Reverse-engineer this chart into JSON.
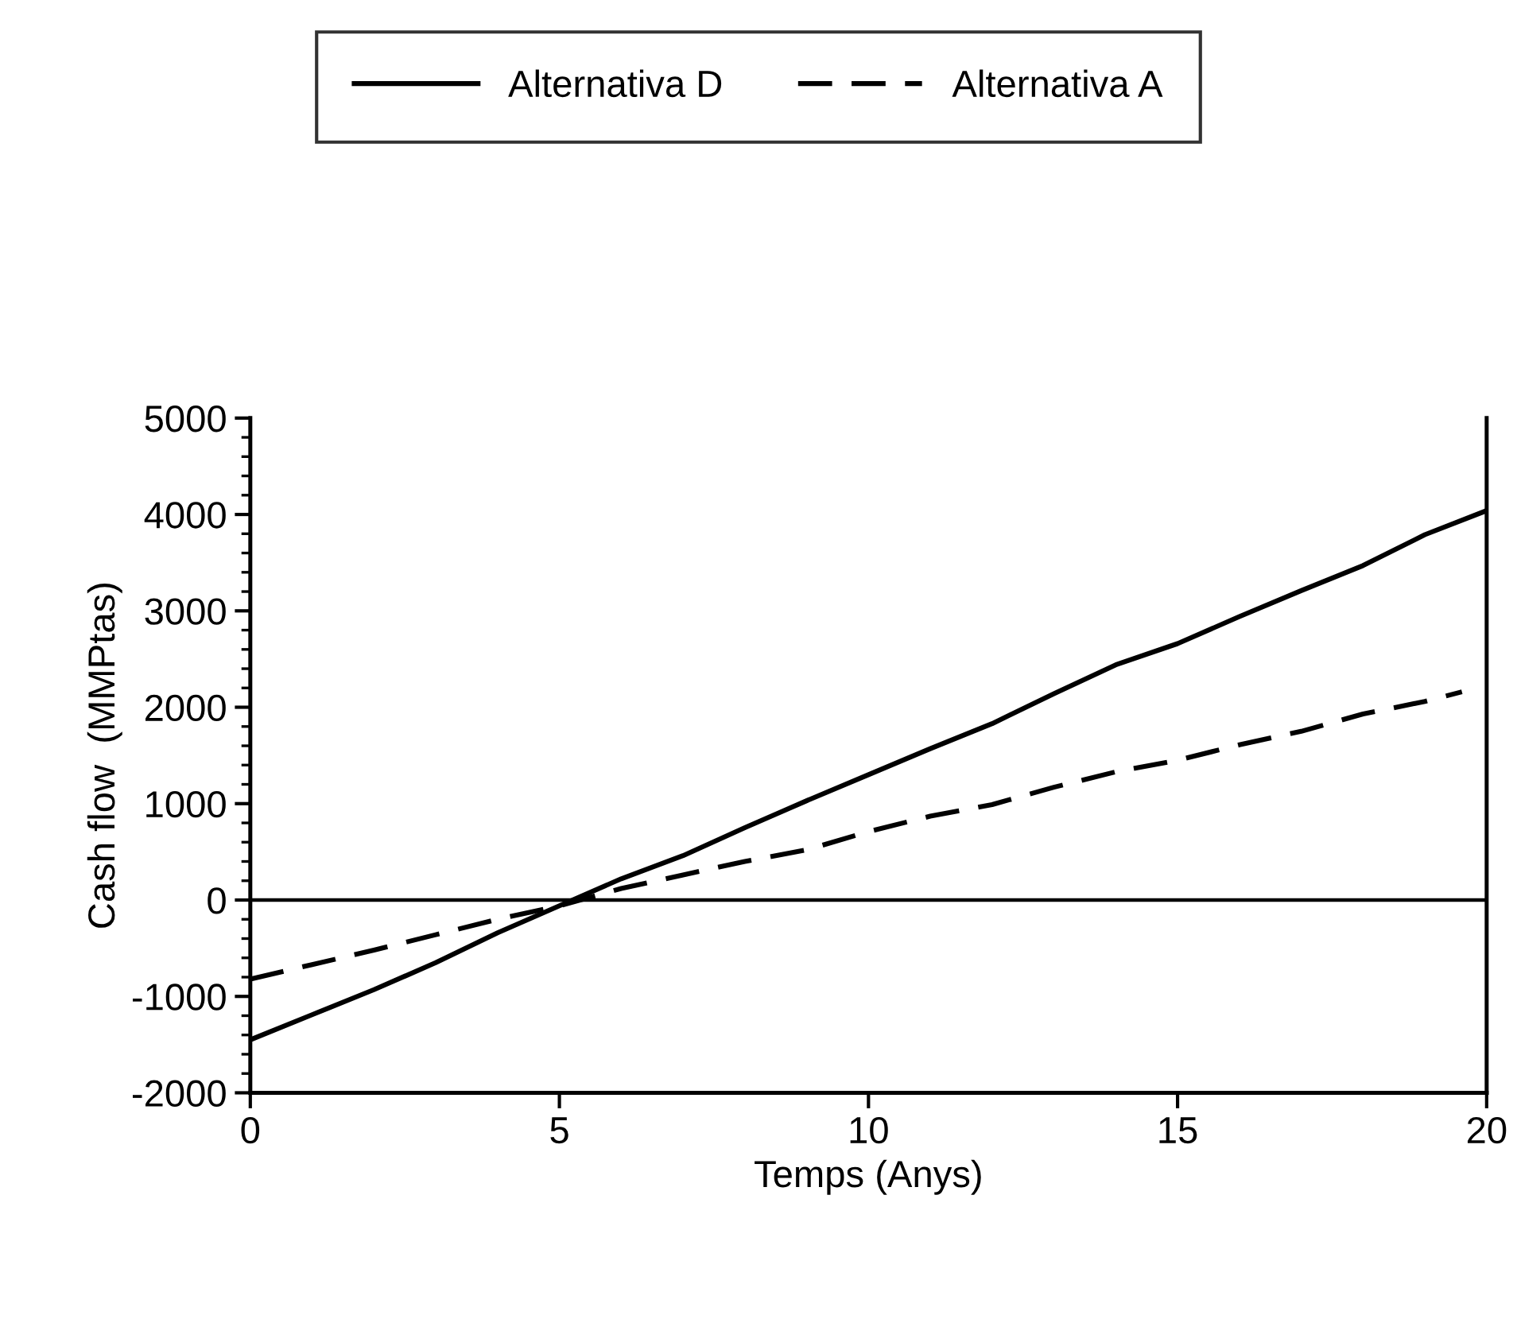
{
  "chart_data": {
    "type": "line",
    "xlabel": "Temps (Anys)",
    "ylabel": "Cash flow  (MMPtas)",
    "xlim": [
      0,
      20
    ],
    "xticks": [
      0,
      5,
      10,
      15,
      20
    ],
    "ylim": [
      -2000,
      5000
    ],
    "yticks": [
      -2000,
      -1000,
      0,
      1000,
      2000,
      3000,
      4000,
      5000
    ],
    "legend": "top",
    "grid": false,
    "marker": "none",
    "ref_lines": [
      {
        "axis": "y",
        "value": 0,
        "color": "#000000"
      }
    ],
    "series": [
      {
        "name": "Alternativa D",
        "color": "#000000",
        "line_style": "solid",
        "x": [
          0,
          1,
          2,
          3,
          4,
          5,
          6,
          7,
          8,
          9,
          10,
          11,
          12,
          13,
          14,
          15,
          16,
          17,
          18,
          19,
          20
        ],
        "values": [
          -1450,
          -1190,
          -930,
          -650,
          -340,
          -60,
          220,
          460,
          750,
          1030,
          1300,
          1570,
          1830,
          2140,
          2440,
          2660,
          2940,
          3210,
          3470,
          3790,
          4040
        ]
      },
      {
        "name": "Alternativa A",
        "color": "#000000",
        "line_style": "dashed",
        "x": [
          0,
          1,
          2,
          3,
          4,
          5,
          6,
          7,
          8,
          9,
          10,
          11,
          12,
          13,
          14,
          15,
          16,
          17,
          18,
          19,
          19.6
        ],
        "values": [
          -820,
          -670,
          -520,
          -360,
          -200,
          -60,
          120,
          260,
          400,
          520,
          710,
          870,
          990,
          1170,
          1330,
          1450,
          1610,
          1750,
          1930,
          2060,
          2160
        ]
      }
    ]
  }
}
